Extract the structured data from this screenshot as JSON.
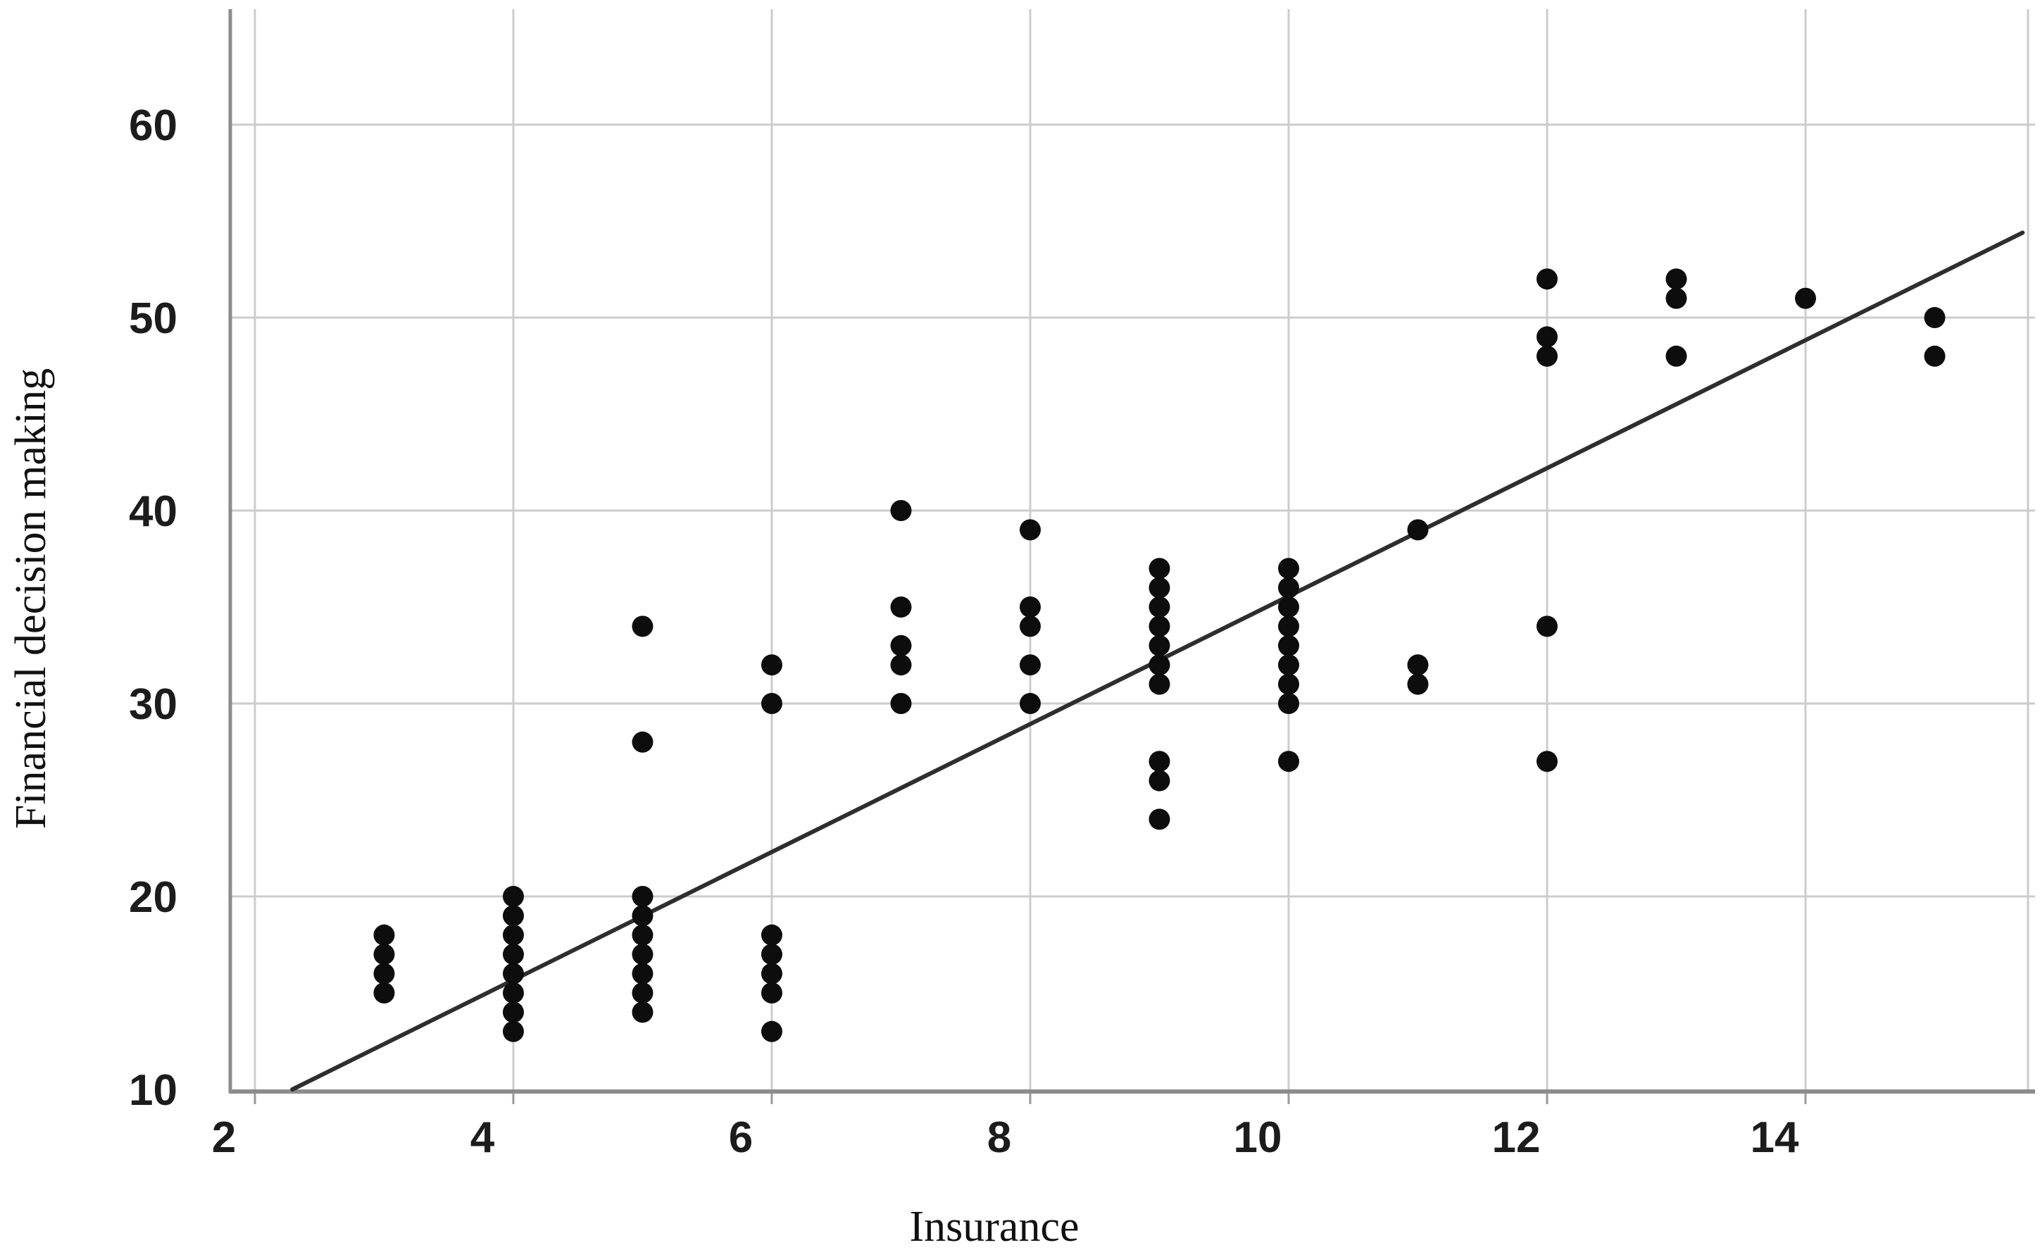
{
  "figure": {
    "background": "#ffffff"
  },
  "chart_data": {
    "type": "scatter",
    "title": "",
    "xlabel": "Insurance",
    "ylabel": "Financial decision making",
    "x_ticks": [
      2,
      4,
      6,
      8,
      10,
      12,
      14
    ],
    "y_ticks": [
      10,
      20,
      30,
      40,
      50,
      60
    ],
    "xlim": [
      1.8,
      15.8
    ],
    "ylim": [
      10,
      66
    ],
    "grid": true,
    "legend_position": "none",
    "marker": "filled-circle",
    "points": [
      [
        3,
        15
      ],
      [
        3,
        16
      ],
      [
        3,
        17
      ],
      [
        3,
        18
      ],
      [
        4,
        13
      ],
      [
        4,
        14
      ],
      [
        4,
        15
      ],
      [
        4,
        16
      ],
      [
        4,
        17
      ],
      [
        4,
        18
      ],
      [
        4,
        19
      ],
      [
        4,
        20
      ],
      [
        5,
        14
      ],
      [
        5,
        15
      ],
      [
        5,
        16
      ],
      [
        5,
        17
      ],
      [
        5,
        18
      ],
      [
        5,
        19
      ],
      [
        5,
        20
      ],
      [
        5,
        28
      ],
      [
        5,
        34
      ],
      [
        6,
        13
      ],
      [
        6,
        15
      ],
      [
        6,
        16
      ],
      [
        6,
        17
      ],
      [
        6,
        18
      ],
      [
        6,
        30
      ],
      [
        6,
        32
      ],
      [
        7,
        30
      ],
      [
        7,
        32
      ],
      [
        7,
        33
      ],
      [
        7,
        35
      ],
      [
        7,
        40
      ],
      [
        8,
        30
      ],
      [
        8,
        32
      ],
      [
        8,
        34
      ],
      [
        8,
        35
      ],
      [
        8,
        39
      ],
      [
        9,
        24
      ],
      [
        9,
        26
      ],
      [
        9,
        27
      ],
      [
        9,
        31
      ],
      [
        9,
        32
      ],
      [
        9,
        33
      ],
      [
        9,
        34
      ],
      [
        9,
        35
      ],
      [
        9,
        36
      ],
      [
        9,
        37
      ],
      [
        10,
        27
      ],
      [
        10,
        30
      ],
      [
        10,
        31
      ],
      [
        10,
        32
      ],
      [
        10,
        33
      ],
      [
        10,
        34
      ],
      [
        10,
        35
      ],
      [
        10,
        36
      ],
      [
        10,
        37
      ],
      [
        11,
        31
      ],
      [
        11,
        32
      ],
      [
        11,
        39
      ],
      [
        12,
        27
      ],
      [
        12,
        34
      ],
      [
        12,
        48
      ],
      [
        12,
        49
      ],
      [
        12,
        52
      ],
      [
        13,
        48
      ],
      [
        13,
        51
      ],
      [
        13,
        52
      ],
      [
        14,
        51
      ],
      [
        15,
        48
      ],
      [
        15,
        50
      ]
    ],
    "regression_line": {
      "x1": 2.29,
      "y1": 10.0,
      "x2": 15.68,
      "y2": 54.4
    },
    "colors": {
      "point": "#0d0d0d",
      "line": "#2e2e2e",
      "grid": "#cccccc",
      "axis": "#8c8c8c",
      "tick_mark": "#9a9a9a",
      "tick_label": "#1c1c1c",
      "axis_title": "#111111"
    }
  }
}
